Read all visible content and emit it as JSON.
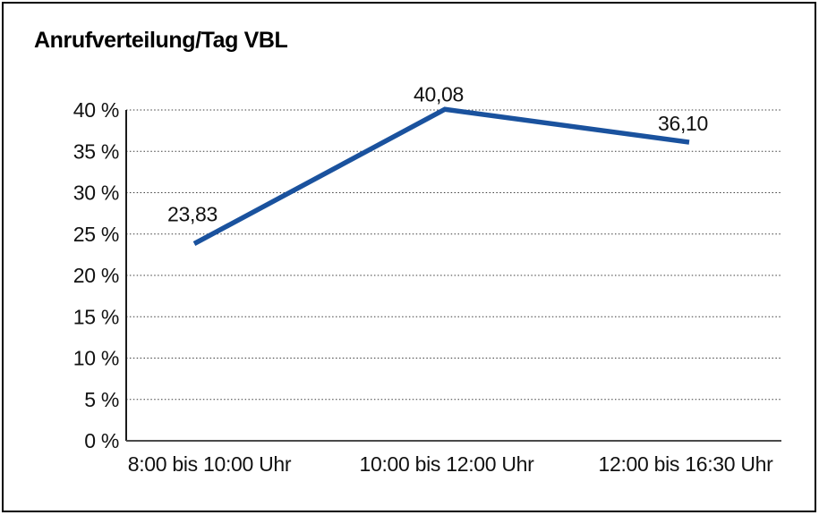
{
  "chart_data": {
    "type": "line",
    "title": "Anrufverteilung/Tag VBL",
    "categories": [
      "8:00 bis 10:00 Uhr",
      "10:00 bis 12:00 Uhr",
      "12:00 bis 16:30 Uhr"
    ],
    "series": [
      {
        "values": [
          23.83,
          40.08,
          36.1
        ]
      }
    ],
    "point_labels": [
      "23,83",
      "40,08",
      "36,10"
    ],
    "xlabel": "",
    "ylabel": "",
    "ylim": [
      0,
      40
    ],
    "yticks": [
      {
        "value": 0,
        "label": "0 %"
      },
      {
        "value": 5,
        "label": "5 %"
      },
      {
        "value": 10,
        "label": "10 %"
      },
      {
        "value": 15,
        "label": "15 %"
      },
      {
        "value": 20,
        "label": "20 %"
      },
      {
        "value": 25,
        "label": "25 %"
      },
      {
        "value": 30,
        "label": "30 %"
      },
      {
        "value": 35,
        "label": "35 %"
      },
      {
        "value": 40,
        "label": "40 %"
      }
    ],
    "grid": "horizontal-dotted",
    "legend": "none",
    "line_color": "#1A529E",
    "markers": "none"
  }
}
